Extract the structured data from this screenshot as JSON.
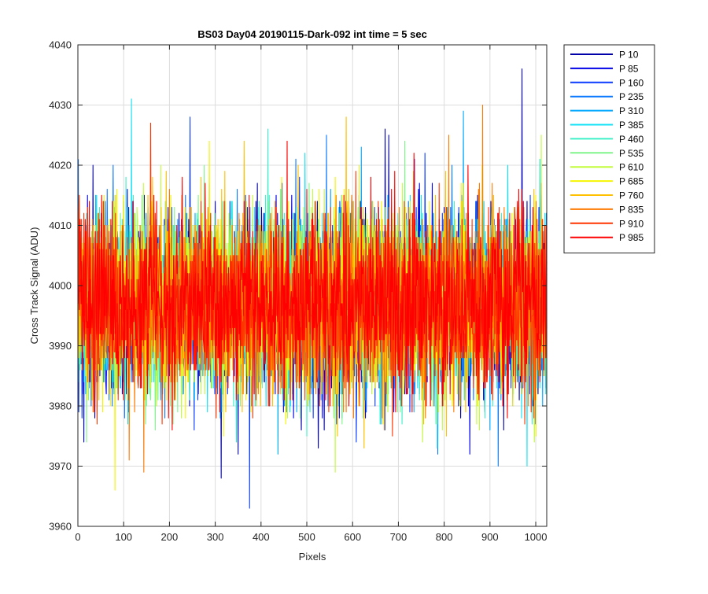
{
  "chart_data": {
    "type": "line",
    "title": "BS03 Day04 20190115-Dark-092 int time = 5 sec",
    "xlabel": "Pixels",
    "ylabel": "Cross Track Signal (ADU)",
    "xlim": [
      0,
      1024
    ],
    "ylim": [
      3960,
      4040
    ],
    "xticks": [
      "0",
      "100",
      "200",
      "300",
      "400",
      "500",
      "600",
      "700",
      "800",
      "900",
      "1000"
    ],
    "yticks": [
      "3960",
      "3970",
      "3980",
      "3990",
      "4000",
      "4010",
      "4020",
      "4030",
      "4040"
    ],
    "grid": true,
    "legend_position": "outside-right",
    "series": [
      {
        "name": "P 10",
        "color": "#0000aa",
        "mean": 3997,
        "std": 7.2,
        "max": 4026,
        "min": 3968
      },
      {
        "name": "P 85",
        "color": "#0000e8",
        "mean": 3997,
        "std": 7.2,
        "max": 4036,
        "min": 3972
      },
      {
        "name": "P 160",
        "color": "#0a3cff",
        "mean": 3997,
        "std": 7.2,
        "max": 4028,
        "min": 3963
      },
      {
        "name": "P 235",
        "color": "#0a78ff",
        "mean": 3997,
        "std": 7.2,
        "max": 4025,
        "min": 3970
      },
      {
        "name": "P 310",
        "color": "#00a8ff",
        "mean": 3997,
        "std": 7.2,
        "max": 4029,
        "min": 3972
      },
      {
        "name": "P 385",
        "color": "#11e2f5",
        "mean": 3997,
        "std": 7.2,
        "max": 4031,
        "min": 3970
      },
      {
        "name": "P 460",
        "color": "#3cf0c8",
        "mean": 3997,
        "std": 7.2,
        "max": 4026,
        "min": 3975
      },
      {
        "name": "P 535",
        "color": "#7ff58a",
        "mean": 3997,
        "std": 7.2,
        "max": 4024,
        "min": 3974
      },
      {
        "name": "P 610",
        "color": "#c2fc3a",
        "mean": 3997,
        "std": 7.2,
        "max": 4025,
        "min": 3969
      },
      {
        "name": "P 685",
        "color": "#f5f500",
        "mean": 3997,
        "std": 7.2,
        "max": 4024,
        "min": 3966
      },
      {
        "name": "P 760",
        "color": "#ffc000",
        "mean": 3997,
        "std": 7.2,
        "max": 4028,
        "min": 3973
      },
      {
        "name": "P 835",
        "color": "#ff7a00",
        "mean": 3997,
        "std": 7.2,
        "max": 4030,
        "min": 3969
      },
      {
        "name": "P 910",
        "color": "#ff3500",
        "mean": 3997,
        "std": 7.2,
        "max": 4027,
        "min": 3975
      },
      {
        "name": "P 985",
        "color": "#ff0000",
        "mean": 3997,
        "std": 7.2,
        "max": 4024,
        "min": 3976
      }
    ]
  }
}
